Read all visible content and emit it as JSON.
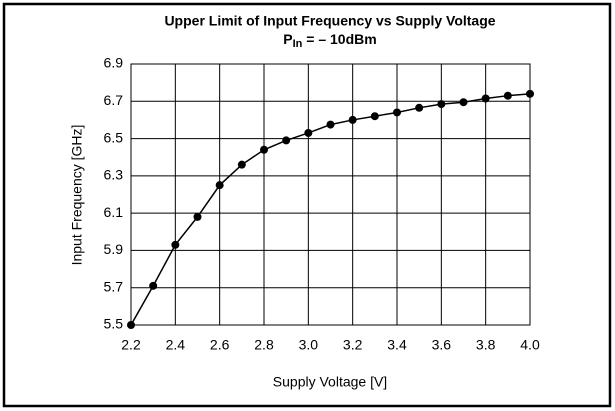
{
  "chart_data": {
    "type": "line",
    "title": "Upper Limit of Input Frequency vs Supply Voltage",
    "subtitle": {
      "base": "P",
      "sub": "In",
      "rest": " = – 10dBm"
    },
    "x_label": "Supply Voltage [V]",
    "y_label": "Input Frequency [GHz]",
    "x": [
      2.2,
      2.3,
      2.4,
      2.5,
      2.6,
      2.7,
      2.8,
      2.9,
      3.0,
      3.1,
      3.2,
      3.3,
      3.4,
      3.5,
      3.6,
      3.7,
      3.8,
      3.9,
      4.0
    ],
    "series": [
      {
        "color": "#000000",
        "values": [
          5.5,
          5.71,
          5.93,
          6.08,
          6.25,
          6.36,
          6.44,
          6.49,
          6.53,
          6.575,
          6.6,
          6.62,
          6.64,
          6.665,
          6.685,
          6.695,
          6.715,
          6.73,
          6.74
        ]
      }
    ],
    "xlim": [
      2.2,
      4.0
    ],
    "ylim": [
      5.5,
      6.9
    ],
    "xticks": [
      2.2,
      2.4,
      2.6,
      2.8,
      {
        "value": 3,
        "label": "3.0"
      },
      3.2,
      3.4,
      3.6,
      3.8,
      {
        "value": 4,
        "label": "4.0"
      }
    ],
    "yticks": [
      5.5,
      5.7,
      5.9,
      6.1,
      6.3,
      6.5,
      6.7,
      6.9
    ],
    "grid": true
  }
}
